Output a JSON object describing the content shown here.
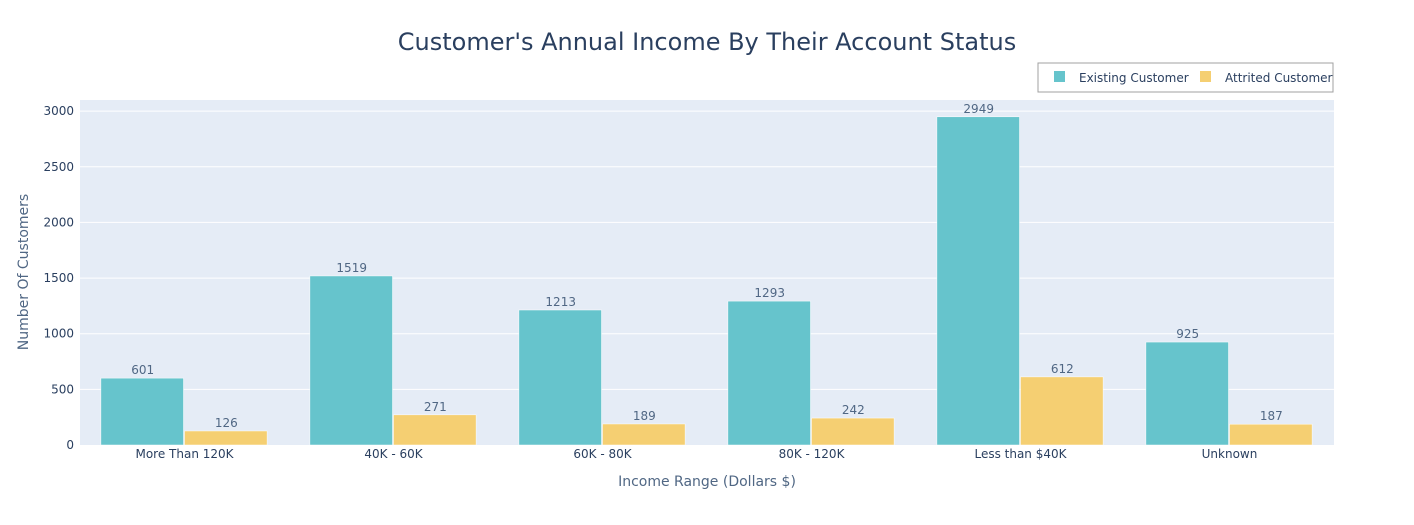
{
  "chart_data": {
    "type": "bar",
    "title": "Customer's Annual Income By Their Account Status",
    "xlabel": "Income Range (Dollars $)",
    "ylabel": "Number Of Customers",
    "categories": [
      "More Than 120K",
      "40K - 60K",
      "60K - 80K",
      "80K - 120K",
      "Less than $40K",
      "Unknown"
    ],
    "series": [
      {
        "name": "Existing Customer",
        "color": "#66c4cc",
        "values": [
          601,
          1519,
          1213,
          1293,
          2949,
          925
        ]
      },
      {
        "name": "Attrited Customer",
        "color": "#f5cf72",
        "values": [
          126,
          271,
          189,
          242,
          612,
          187
        ]
      }
    ],
    "ylim": [
      0,
      3100
    ],
    "yticks": [
      0,
      500,
      1000,
      1500,
      2000,
      2500,
      3000
    ],
    "grid": true,
    "legend_position": "top-right",
    "plot_background": "#e5ecf6"
  }
}
